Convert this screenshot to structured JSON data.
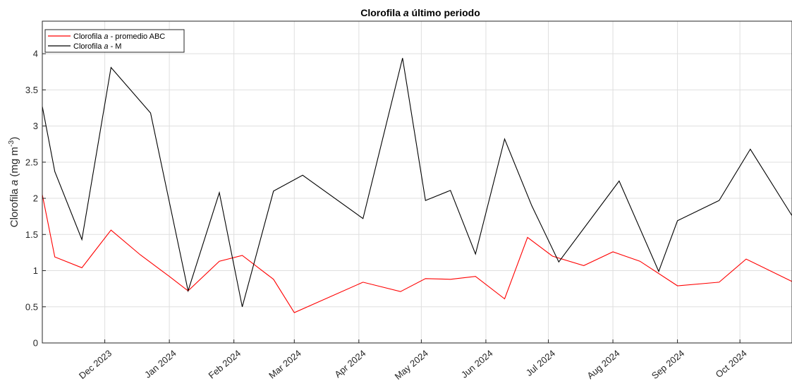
{
  "chart_data": {
    "type": "line",
    "title": "Clorofila a último periodo",
    "title_parts": [
      "Clorofila ",
      "a",
      " último periodo"
    ],
    "ylabel": "Clorofila a (mg m-3)",
    "ylabel_parts": [
      "Clorofila ",
      "a",
      " (mg m",
      "-3",
      ")"
    ],
    "xlabel": "",
    "ylim": [
      0,
      4.45
    ],
    "xlim": [
      "2023-11-01",
      "2024-10-26"
    ],
    "y_ticks": [
      0,
      0.5,
      1,
      1.5,
      2,
      2.5,
      3,
      3.5,
      4
    ],
    "y_tick_labels": [
      "0",
      "0.5",
      "1",
      "1.5",
      "2",
      "2.5",
      "3",
      "3.5",
      "4"
    ],
    "x_ticks": [
      {
        "date": "2023-12-01",
        "label": "Dec 2023"
      },
      {
        "date": "2024-01-01",
        "label": "Jan 2024"
      },
      {
        "date": "2024-02-01",
        "label": "Feb 2024"
      },
      {
        "date": "2024-03-01",
        "label": "Mar 2024"
      },
      {
        "date": "2024-04-01",
        "label": "Apr 2024"
      },
      {
        "date": "2024-05-01",
        "label": "May 2024"
      },
      {
        "date": "2024-06-01",
        "label": "Jun 2024"
      },
      {
        "date": "2024-07-01",
        "label": "Jul 2024"
      },
      {
        "date": "2024-08-01",
        "label": "Aug 2024"
      },
      {
        "date": "2024-09-01",
        "label": "Sep 2024"
      },
      {
        "date": "2024-10-01",
        "label": "Oct 2024"
      }
    ],
    "grid": true,
    "legend_position": "top-left",
    "series": [
      {
        "name": "Clorofila a - promedio ABC",
        "name_parts": [
          "Clorofila ",
          "a",
          " - promedio ABC"
        ],
        "color": "#ff0000",
        "points": [
          [
            "2023-11-01",
            2.05
          ],
          [
            "2023-11-07",
            1.19
          ],
          [
            "2023-11-20",
            1.04
          ],
          [
            "2023-12-04",
            1.56
          ],
          [
            "2023-12-18",
            1.22
          ],
          [
            "2024-01-01",
            0.92
          ],
          [
            "2024-01-10",
            0.72
          ],
          [
            "2024-01-25",
            1.13
          ],
          [
            "2024-02-05",
            1.21
          ],
          [
            "2024-02-20",
            0.88
          ],
          [
            "2024-03-01",
            0.42
          ],
          [
            "2024-04-03",
            0.84
          ],
          [
            "2024-04-21",
            0.71
          ],
          [
            "2024-05-03",
            0.89
          ],
          [
            "2024-05-15",
            0.88
          ],
          [
            "2024-05-27",
            0.92
          ],
          [
            "2024-06-10",
            0.61
          ],
          [
            "2024-06-21",
            1.46
          ],
          [
            "2024-07-03",
            1.2
          ],
          [
            "2024-07-18",
            1.07
          ],
          [
            "2024-08-01",
            1.26
          ],
          [
            "2024-08-14",
            1.13
          ],
          [
            "2024-09-01",
            0.79
          ],
          [
            "2024-09-21",
            0.84
          ],
          [
            "2024-10-04",
            1.16
          ],
          [
            "2024-10-26",
            0.85
          ]
        ]
      },
      {
        "name": "Clorofila a - M",
        "name_parts": [
          "Clorofila ",
          "a",
          " - M"
        ],
        "color": "#000000",
        "points": [
          [
            "2023-11-01",
            3.27
          ],
          [
            "2023-11-07",
            2.37
          ],
          [
            "2023-11-20",
            1.43
          ],
          [
            "2023-12-04",
            3.81
          ],
          [
            "2023-12-23",
            3.18
          ],
          [
            "2024-01-10",
            0.72
          ],
          [
            "2024-01-25",
            2.08
          ],
          [
            "2024-02-05",
            0.5
          ],
          [
            "2024-02-20",
            2.1
          ],
          [
            "2024-03-05",
            2.32
          ],
          [
            "2024-04-03",
            1.72
          ],
          [
            "2024-04-22",
            3.94
          ],
          [
            "2024-05-03",
            1.97
          ],
          [
            "2024-05-15",
            2.11
          ],
          [
            "2024-05-27",
            1.23
          ],
          [
            "2024-06-10",
            2.82
          ],
          [
            "2024-06-23",
            1.9
          ],
          [
            "2024-07-06",
            1.12
          ],
          [
            "2024-08-04",
            2.24
          ],
          [
            "2024-08-23",
            0.99
          ],
          [
            "2024-09-01",
            1.69
          ],
          [
            "2024-09-21",
            1.97
          ],
          [
            "2024-10-06",
            2.68
          ],
          [
            "2024-10-26",
            1.76
          ]
        ]
      }
    ]
  }
}
